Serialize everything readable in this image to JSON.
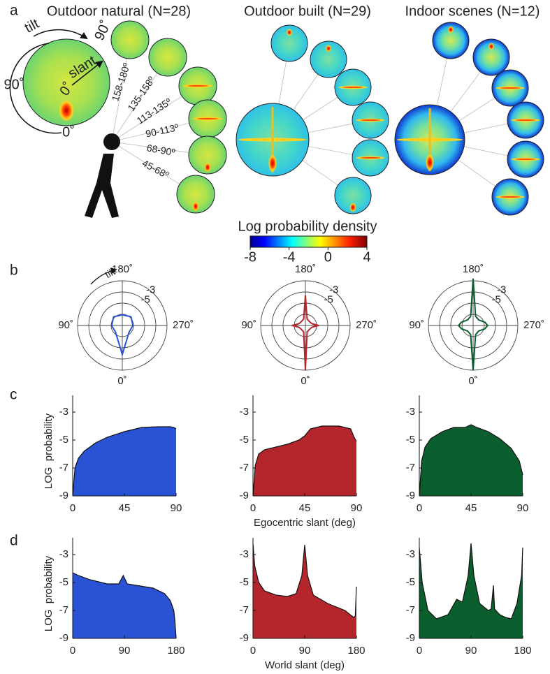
{
  "panel_labels": [
    "a",
    "b",
    "c",
    "d"
  ],
  "panel_a": {
    "titles": [
      "Outdoor natural (N=28)",
      "Outdoor built (N=29)",
      "Indoor scenes (N=12)"
    ],
    "tilt": "tilt",
    "slant": "slant",
    "tilt_90": "90˚",
    "tilt_0": "0˚",
    "slant_0": "0˚",
    "slant_90": "90˚",
    "slant_bins": [
      "158-180º",
      "135-158º",
      "113-135º",
      "90-113º",
      "68-90º",
      "45-68º"
    ],
    "colorbar": {
      "label": "Log probability density",
      "lim": [
        -8,
        4
      ],
      "ticks": [
        -8,
        -4,
        0,
        4
      ]
    }
  },
  "panel_b_tilt": "tilt",
  "chart_data": [
    {
      "type": "polar",
      "color": "#2a52d4",
      "rlim": [
        -11,
        -3
      ],
      "rticks": [
        -3,
        -5
      ],
      "rgrid": [
        -3,
        -5,
        -7,
        -9
      ],
      "thetaticks": [
        {
          "value": 0,
          "label": "0˚"
        },
        {
          "value": 90,
          "label": "90˚"
        },
        {
          "value": 180,
          "label": "180˚"
        },
        {
          "value": 270,
          "label": "270˚"
        }
      ],
      "theta": [
        0,
        45,
        90,
        135,
        180,
        225,
        270,
        315
      ],
      "values": [
        -5.8,
        -9.3,
        -9.1,
        -8.8,
        -9.1,
        -8.8,
        -9.1,
        -9.3
      ]
    },
    {
      "type": "polar",
      "color": "#b5252c",
      "rlim": [
        -11,
        -3
      ],
      "rticks": [
        -3,
        -5
      ],
      "rgrid": [
        -3,
        -5,
        -7,
        -9
      ],
      "thetaticks": [
        {
          "value": 0,
          "label": "0˚"
        },
        {
          "value": 90,
          "label": "90˚"
        },
        {
          "value": 180,
          "label": "180˚"
        },
        {
          "value": 270,
          "label": "270˚"
        }
      ],
      "theta": [
        0,
        15,
        45,
        75,
        90,
        105,
        135,
        165,
        180,
        195,
        225,
        255,
        270,
        285,
        315,
        345
      ],
      "values": [
        -3,
        -9.8,
        -10,
        -9.8,
        -8.6,
        -9.8,
        -10,
        -9.8,
        -5.6,
        -9.8,
        -10,
        -9.8,
        -8.6,
        -9.8,
        -10,
        -9.8
      ]
    },
    {
      "type": "polar",
      "color": "#0b5e2e",
      "rlim": [
        -11,
        -3
      ],
      "rticks": [
        -3,
        -5
      ],
      "rgrid": [
        -3,
        -5,
        -7,
        -9
      ],
      "thetaticks": [
        {
          "value": 0,
          "label": "0˚"
        },
        {
          "value": 90,
          "label": "90˚"
        },
        {
          "value": 180,
          "label": "180˚"
        },
        {
          "value": 270,
          "label": "270˚"
        }
      ],
      "theta": [
        0,
        15,
        45,
        75,
        90,
        105,
        135,
        165,
        180,
        195,
        225,
        255,
        270,
        285,
        315,
        345
      ],
      "values": [
        -3,
        -9.3,
        -9.6,
        -8.8,
        -8.4,
        -8.8,
        -9.6,
        -9.3,
        -2.6,
        -9.3,
        -9.6,
        -8.8,
        -8.4,
        -8.8,
        -9.6,
        -9.3
      ]
    },
    {
      "type": "area",
      "color": "#2a52d4",
      "ylabel": "LOG  probability",
      "xlim": [
        0,
        90
      ],
      "xticks": [
        0,
        45,
        90
      ],
      "ylim": [
        -9,
        -1.8
      ],
      "yticks": [
        -3,
        -5,
        -7,
        -9
      ],
      "x": [
        0,
        2,
        5,
        10,
        20,
        30,
        45,
        60,
        75,
        85,
        88,
        90
      ],
      "values": [
        -9,
        -7,
        -6.3,
        -5.8,
        -5.2,
        -4.8,
        -4.4,
        -4.1,
        -4.05,
        -4.05,
        -4.1,
        -4.2
      ]
    },
    {
      "type": "area",
      "color": "#b5252c",
      "xlabel": "Egocentric slant (deg)",
      "xlim": [
        0,
        90
      ],
      "xticks": [
        0,
        45,
        90
      ],
      "ylim": [
        -9,
        -1.8
      ],
      "yticks": [
        -3,
        -5,
        -7,
        -9
      ],
      "x": [
        0,
        2,
        5,
        10,
        20,
        30,
        40,
        45,
        50,
        60,
        75,
        85,
        88,
        90
      ],
      "values": [
        -9,
        -6.8,
        -6,
        -5.7,
        -5.5,
        -5.3,
        -5,
        -4.7,
        -4.2,
        -4,
        -4,
        -4.2,
        -4.8,
        -5.1
      ]
    },
    {
      "type": "area",
      "color": "#0b5e2e",
      "xlim": [
        0,
        90
      ],
      "xticks": [
        0,
        45,
        90
      ],
      "ylim": [
        -9,
        -1.8
      ],
      "yticks": [
        -3,
        -5,
        -7,
        -9
      ],
      "x": [
        0,
        2,
        5,
        10,
        20,
        30,
        40,
        45,
        50,
        60,
        70,
        80,
        87,
        90
      ],
      "values": [
        -9,
        -6.5,
        -5.5,
        -4.9,
        -4.4,
        -4.1,
        -4.1,
        -3.9,
        -4.1,
        -4.4,
        -4.9,
        -5.6,
        -6.5,
        -7.5
      ]
    },
    {
      "type": "area",
      "color": "#2a52d4",
      "ylabel": "LOG  probability",
      "xlim": [
        0,
        180
      ],
      "xticks": [
        0,
        90,
        180
      ],
      "ylim": [
        -9,
        -1.8
      ],
      "yticks": [
        -3,
        -5,
        -7,
        -9
      ],
      "x": [
        0,
        10,
        30,
        60,
        80,
        88,
        95,
        110,
        140,
        160,
        170,
        176,
        178,
        180
      ],
      "values": [
        -4.3,
        -4.5,
        -4.8,
        -5.1,
        -5.1,
        -4.5,
        -5.1,
        -5.2,
        -5.4,
        -5.8,
        -6.3,
        -7,
        -7.8,
        -9
      ]
    },
    {
      "type": "area",
      "color": "#b5252c",
      "xlabel": "World slant (deg)",
      "xlim": [
        0,
        180
      ],
      "xticks": [
        0,
        90,
        180
      ],
      "ylim": [
        -9,
        -1.8
      ],
      "yticks": [
        -3,
        -5,
        -7,
        -9
      ],
      "x": [
        0,
        3,
        10,
        20,
        40,
        60,
        75,
        85,
        90,
        95,
        105,
        130,
        160,
        175,
        178,
        180
      ],
      "values": [
        -2.2,
        -3.8,
        -5,
        -5.6,
        -5.9,
        -6,
        -5.8,
        -4.5,
        -2.3,
        -4.5,
        -5.9,
        -6.5,
        -7,
        -7.5,
        -7.4,
        -5.3
      ]
    },
    {
      "type": "area",
      "color": "#0b5e2e",
      "xlim": [
        0,
        180
      ],
      "xticks": [
        0,
        90,
        180
      ],
      "ylim": [
        -9,
        -1.8
      ],
      "yticks": [
        -3,
        -5,
        -7,
        -9
      ],
      "x": [
        0,
        5,
        15,
        30,
        50,
        65,
        75,
        85,
        90,
        95,
        105,
        120,
        125,
        129,
        131,
        140,
        150,
        160,
        170,
        178,
        180
      ],
      "values": [
        -2.5,
        -5,
        -7,
        -7.6,
        -7.3,
        -6.2,
        -6.4,
        -4.5,
        -2.2,
        -4.5,
        -6.5,
        -7,
        -6.9,
        -5.2,
        -6.9,
        -7.3,
        -7.5,
        -7.6,
        -6.5,
        -4.5,
        -2.5
      ]
    }
  ]
}
